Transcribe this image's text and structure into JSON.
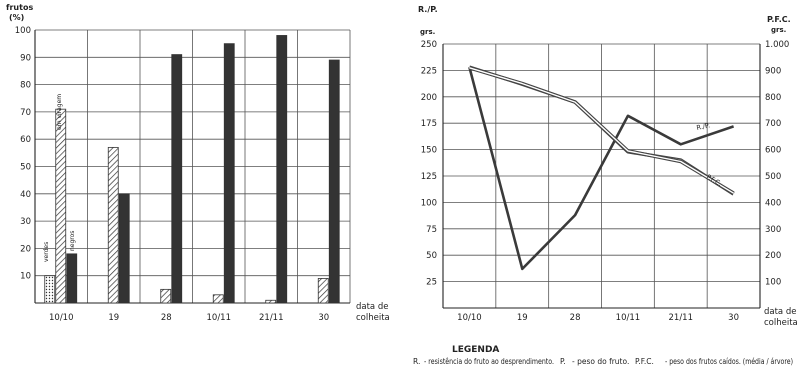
{
  "chart_data": [
    {
      "type": "bar",
      "ylabel": "frutos",
      "yunit": "(%)",
      "xlabel": "data de colheita",
      "xlabel_lines": [
        "data de",
        "colheita"
      ],
      "categories": [
        "10/10",
        "19",
        "28",
        "10/11",
        "21/11",
        "30"
      ],
      "ylim": [
        0,
        100
      ],
      "yticks": [
        10,
        20,
        30,
        40,
        50,
        60,
        70,
        80,
        90,
        100
      ],
      "grid": true,
      "series": [
        {
          "name": "verdes",
          "values": [
            10,
            0,
            0,
            0,
            0,
            0
          ],
          "pattern": "dots"
        },
        {
          "name": "em viragem",
          "values": [
            71,
            57,
            5,
            3,
            1,
            9
          ],
          "pattern": "hatch"
        },
        {
          "name": "negros",
          "values": [
            18,
            40,
            91,
            95,
            98,
            89
          ],
          "pattern": "solid"
        }
      ],
      "series_labels": {
        "verdes": "verdes",
        "em viragem": "em viragem",
        "negros": "negros"
      }
    },
    {
      "type": "line",
      "ylabel_left": "R./P.",
      "ylabel_left_unit": "grs.",
      "ylabel_right": "P.F.C.",
      "ylabel_right_unit": "grs.",
      "xlabel": "data de colheita",
      "xlabel_lines": [
        "data de",
        "colheita"
      ],
      "categories": [
        "10/10",
        "19",
        "28",
        "10/11",
        "21/11",
        "30"
      ],
      "ylim_left": [
        0,
        250
      ],
      "ylim_right": [
        0,
        1000
      ],
      "yticks_left": [
        25,
        50,
        75,
        100,
        125,
        150,
        175,
        200,
        225,
        250
      ],
      "yticks_right_labels": [
        "100",
        "200",
        "300",
        "400",
        "500",
        "600",
        "700",
        "800",
        "900",
        "1.000"
      ],
      "grid": true,
      "series": [
        {
          "name": "R./P.",
          "axis": "left",
          "values": [
            228,
            37,
            88,
            182,
            155,
            172
          ],
          "line": "solid"
        },
        {
          "name": "P.",
          "axis": "left",
          "values": [
            228,
            212,
            195,
            148,
            140,
            108
          ],
          "line": "double"
        },
        {
          "name": "P.F.C.",
          "axis": "right",
          "values": [
            910,
            850,
            780,
            595,
            555,
            435
          ],
          "line": "double"
        }
      ],
      "curve_labels": {
        "rp": "R./P.",
        "pfc": "P.F.C."
      },
      "legend": {
        "title": "LEGENDA",
        "items": [
          {
            "key": "R.",
            "text": "- resistência do fruto ao desprendimento."
          },
          {
            "key": "P.",
            "text": "- peso do fruto."
          },
          {
            "key": "P.F.C.",
            "text": "- peso dos frutos caídos. (média / árvore)"
          }
        ]
      }
    }
  ]
}
